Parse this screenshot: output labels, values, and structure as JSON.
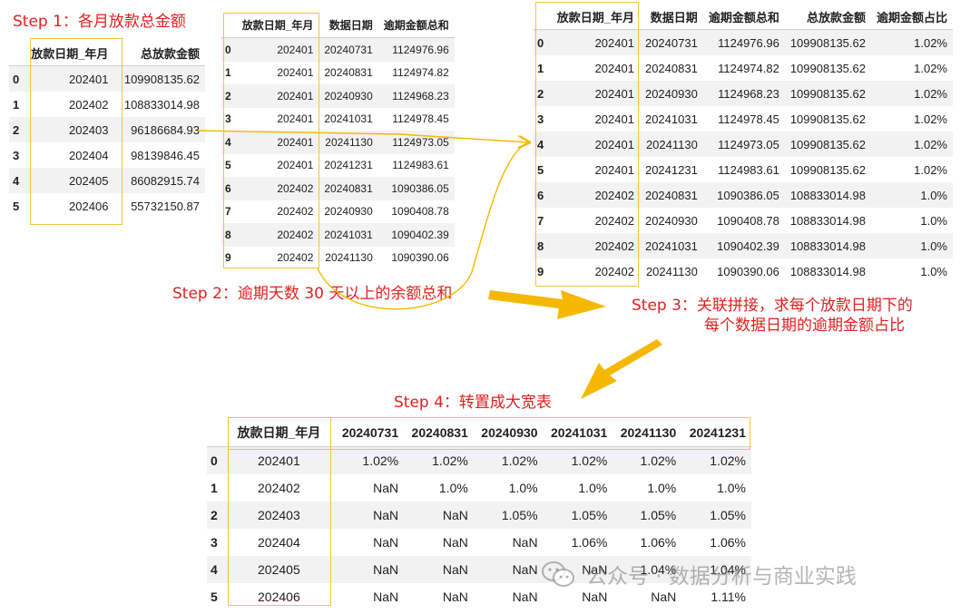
{
  "steps": {
    "s1": "Step 1：各月放款总金额",
    "s2": "Step 2：逾期天数 30 天以上的余额总和",
    "s3_line1": "Step 3：关联拼接，求每个放款日期下的",
    "s3_line2": "每个数据日期的逾期金额占比",
    "s4": "Step 4：转置成大宽表"
  },
  "table1": {
    "headers": [
      "",
      "放款日期_年月",
      "总放款金额"
    ],
    "rows": [
      [
        "0",
        "202401",
        "109908135.62"
      ],
      [
        "1",
        "202402",
        "108833014.98"
      ],
      [
        "2",
        "202403",
        "96186684.93"
      ],
      [
        "3",
        "202404",
        "98139846.45"
      ],
      [
        "4",
        "202405",
        "86082915.74"
      ],
      [
        "5",
        "202406",
        "55732150.87"
      ]
    ]
  },
  "table2": {
    "headers": [
      "",
      "放款日期_年月",
      "数据日期",
      "逾期金额总和"
    ],
    "rows": [
      [
        "0",
        "202401",
        "20240731",
        "1124976.96"
      ],
      [
        "1",
        "202401",
        "20240831",
        "1124974.82"
      ],
      [
        "2",
        "202401",
        "20240930",
        "1124968.23"
      ],
      [
        "3",
        "202401",
        "20241031",
        "1124978.45"
      ],
      [
        "4",
        "202401",
        "20241130",
        "1124973.05"
      ],
      [
        "5",
        "202401",
        "20241231",
        "1124983.61"
      ],
      [
        "6",
        "202402",
        "20240831",
        "1090386.05"
      ],
      [
        "7",
        "202402",
        "20240930",
        "1090408.78"
      ],
      [
        "8",
        "202402",
        "20241031",
        "1090402.39"
      ],
      [
        "9",
        "202402",
        "20241130",
        "1090390.06"
      ]
    ]
  },
  "table3": {
    "headers": [
      "",
      "放款日期_年月",
      "数据日期",
      "逾期金额总和",
      "总放款金额",
      "逾期金额占比"
    ],
    "rows": [
      [
        "0",
        "202401",
        "20240731",
        "1124976.96",
        "109908135.62",
        "1.02%"
      ],
      [
        "1",
        "202401",
        "20240831",
        "1124974.82",
        "109908135.62",
        "1.02%"
      ],
      [
        "2",
        "202401",
        "20240930",
        "1124968.23",
        "109908135.62",
        "1.02%"
      ],
      [
        "3",
        "202401",
        "20241031",
        "1124978.45",
        "109908135.62",
        "1.02%"
      ],
      [
        "4",
        "202401",
        "20241130",
        "1124973.05",
        "109908135.62",
        "1.02%"
      ],
      [
        "5",
        "202401",
        "20241231",
        "1124983.61",
        "109908135.62",
        "1.02%"
      ],
      [
        "6",
        "202402",
        "20240831",
        "1090386.05",
        "108833014.98",
        "1.0%"
      ],
      [
        "7",
        "202402",
        "20240930",
        "1090408.78",
        "108833014.98",
        "1.0%"
      ],
      [
        "8",
        "202402",
        "20241031",
        "1090402.39",
        "108833014.98",
        "1.0%"
      ],
      [
        "9",
        "202402",
        "20241130",
        "1090390.06",
        "108833014.98",
        "1.0%"
      ]
    ]
  },
  "table4": {
    "headers": [
      "",
      "放款日期_年月",
      "20240731",
      "20240831",
      "20240930",
      "20241031",
      "20241130",
      "20241231"
    ],
    "rows": [
      [
        "0",
        "202401",
        "1.02%",
        "1.02%",
        "1.02%",
        "1.02%",
        "1.02%",
        "1.02%"
      ],
      [
        "1",
        "202402",
        "NaN",
        "1.0%",
        "1.0%",
        "1.0%",
        "1.0%",
        "1.0%"
      ],
      [
        "2",
        "202403",
        "NaN",
        "NaN",
        "1.05%",
        "1.05%",
        "1.05%",
        "1.05%"
      ],
      [
        "3",
        "202404",
        "NaN",
        "NaN",
        "NaN",
        "1.06%",
        "1.06%",
        "1.06%"
      ],
      [
        "4",
        "202405",
        "NaN",
        "NaN",
        "NaN",
        "NaN",
        "1.04%",
        "1.04%"
      ],
      [
        "5",
        "202406",
        "NaN",
        "NaN",
        "NaN",
        "NaN",
        "NaN",
        "1.11%"
      ]
    ]
  },
  "watermark": {
    "icon": "wechat-icon",
    "text": "公众号 · 数据分析与商业实践"
  },
  "colors": {
    "step_text": "#e02020",
    "highlight": "#f5c242",
    "arrow": "#f5b800",
    "row_stripe": "#f2f2f2"
  }
}
